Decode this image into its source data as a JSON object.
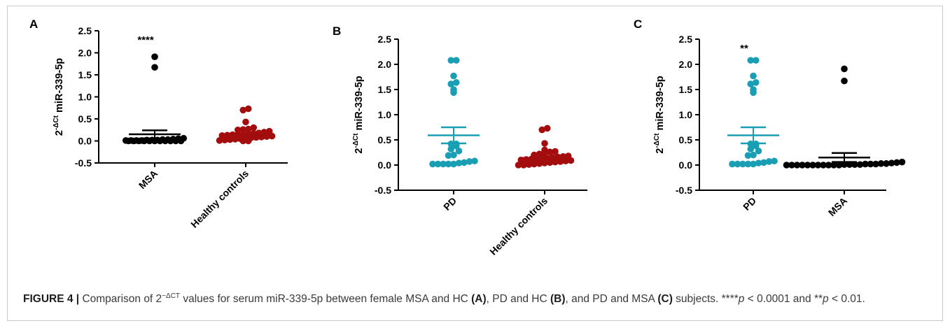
{
  "caption": {
    "label": "FIGURE 4 |",
    "text_a": " Comparison of 2",
    "sup": "−ΔCT",
    "text_b": " values for serum miR-339-5p between female MSA and HC ",
    "ref_a": "(A)",
    "text_c": ", PD and HC ",
    "ref_b": "(B)",
    "text_d": ", and PD and MSA ",
    "ref_c": "(C)",
    "text_e": " subjects. ****",
    "p1": "p",
    "text_f": " < 0.0001 and **",
    "p2": "p",
    "text_g": " < 0.01."
  },
  "colors": {
    "black_series": "#000000",
    "red_series": "#a30d0d",
    "teal_series": "#1a9eb4"
  },
  "chart_data": [
    {
      "panel": "A",
      "type": "scatter",
      "ylabel_prefix": "2",
      "ylabel_sup": "-ΔCt",
      "ylabel_main": " miR-339-5p",
      "ylim": [
        -0.5,
        2.5
      ],
      "yticks": [
        "-0.5",
        "0.0",
        "0.5",
        "1.0",
        "1.5",
        "2.0",
        "2.5"
      ],
      "categories": [
        "MSA",
        "Healthy controls"
      ],
      "significance": [
        {
          "category": "MSA",
          "text": "****"
        }
      ],
      "series": [
        {
          "category": "MSA",
          "color": "black",
          "values": [
            1.91,
            1.67,
            0.06,
            0.05,
            0.04,
            0.03,
            0.03,
            0.02,
            0.02,
            0.02,
            0.01,
            0.01,
            0.01,
            0.01,
            0.0,
            0.0,
            0.0,
            0.0,
            0.0,
            0.0,
            0.0,
            0.0,
            0.0,
            0.0,
            0.0
          ],
          "mean": 0.15,
          "sem": 0.09
        },
        {
          "category": "Healthy controls",
          "color": "red",
          "values": [
            0.73,
            0.7,
            0.43,
            0.3,
            0.27,
            0.26,
            0.25,
            0.22,
            0.2,
            0.18,
            0.17,
            0.16,
            0.15,
            0.14,
            0.14,
            0.13,
            0.12,
            0.11,
            0.1,
            0.09,
            0.08,
            0.07,
            0.06,
            0.05,
            0.04,
            0.03,
            0.02,
            0.01,
            0.0,
            0.0
          ],
          "mean": 0.14,
          "sem": 0.03
        }
      ]
    },
    {
      "panel": "B",
      "type": "scatter",
      "ylabel_prefix": "2",
      "ylabel_sup": "-ΔCt",
      "ylabel_main": " miR-339-5p",
      "ylim": [
        -0.5,
        2.5
      ],
      "yticks": [
        "-0.5",
        "0.0",
        "0.5",
        "1.0",
        "1.5",
        "2.0",
        "2.5"
      ],
      "categories": [
        "PD",
        "Healthy controls"
      ],
      "significance": [],
      "series": [
        {
          "category": "PD",
          "color": "teal",
          "values": [
            2.08,
            2.08,
            1.77,
            1.64,
            1.61,
            1.5,
            1.44,
            0.42,
            0.42,
            0.38,
            0.32,
            0.28,
            0.2,
            0.19,
            0.08,
            0.07,
            0.05,
            0.04,
            0.02,
            0.02,
            0.02,
            0.02,
            0.02
          ],
          "mean": 0.59,
          "sem": 0.16
        },
        {
          "category": "Healthy controls",
          "color": "red",
          "values": [
            0.73,
            0.7,
            0.43,
            0.3,
            0.27,
            0.26,
            0.25,
            0.22,
            0.2,
            0.18,
            0.17,
            0.16,
            0.15,
            0.14,
            0.14,
            0.13,
            0.12,
            0.11,
            0.1,
            0.09,
            0.08,
            0.07,
            0.06,
            0.05,
            0.04,
            0.03,
            0.02,
            0.01,
            0.0,
            0.0
          ],
          "mean": 0.14,
          "sem": 0.03
        }
      ]
    },
    {
      "panel": "C",
      "type": "scatter",
      "ylabel_prefix": "2",
      "ylabel_sup": "-ΔCt",
      "ylabel_main": " miR-339-5p",
      "ylim": [
        -0.5,
        2.5
      ],
      "yticks": [
        "-0.5",
        "0.0",
        "0.5",
        "1.0",
        "1.5",
        "2.0",
        "2.5"
      ],
      "categories": [
        "PD",
        "MSA"
      ],
      "significance": [
        {
          "category": "PD",
          "text": "**"
        }
      ],
      "series": [
        {
          "category": "PD",
          "color": "teal",
          "values": [
            2.08,
            2.08,
            1.77,
            1.64,
            1.61,
            1.5,
            1.44,
            0.42,
            0.42,
            0.38,
            0.32,
            0.28,
            0.2,
            0.19,
            0.08,
            0.07,
            0.05,
            0.04,
            0.02,
            0.02,
            0.02,
            0.02,
            0.02
          ],
          "mean": 0.59,
          "sem": 0.16
        },
        {
          "category": "MSA",
          "color": "black",
          "values": [
            1.91,
            1.67,
            0.06,
            0.05,
            0.04,
            0.03,
            0.03,
            0.02,
            0.02,
            0.02,
            0.01,
            0.01,
            0.01,
            0.01,
            0.0,
            0.0,
            0.0,
            0.0,
            0.0,
            0.0,
            0.0,
            0.0,
            0.0,
            0.0,
            0.0
          ],
          "mean": 0.15,
          "sem": 0.09
        }
      ]
    }
  ]
}
